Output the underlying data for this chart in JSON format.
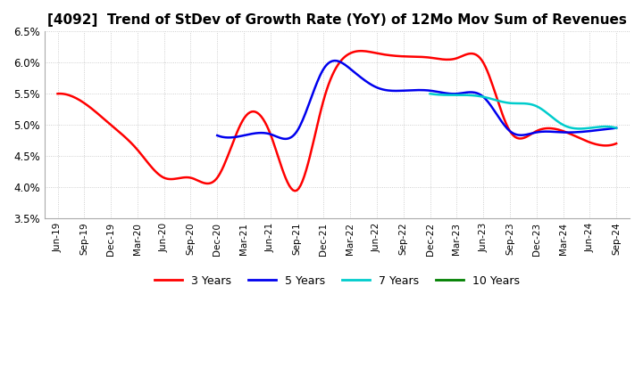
{
  "title": "[4092]  Trend of StDev of Growth Rate (YoY) of 12Mo Mov Sum of Revenues",
  "ylim": [
    0.035,
    0.065
  ],
  "yticks": [
    0.035,
    0.04,
    0.045,
    0.05,
    0.055,
    0.06,
    0.065
  ],
  "ytick_labels": [
    "3.5%",
    "4.0%",
    "4.5%",
    "5.0%",
    "5.5%",
    "6.0%",
    "6.5%"
  ],
  "xtick_labels": [
    "Jun-19",
    "Sep-19",
    "Dec-19",
    "Mar-20",
    "Jun-20",
    "Sep-20",
    "Dec-20",
    "Mar-21",
    "Jun-21",
    "Sep-21",
    "Dec-21",
    "Mar-22",
    "Jun-22",
    "Sep-22",
    "Dec-22",
    "Mar-23",
    "Jun-23",
    "Sep-23",
    "Dec-23",
    "Mar-24",
    "Jun-24",
    "Sep-24"
  ],
  "series": {
    "3 Years": {
      "color": "#FF0000",
      "data_x": [
        0,
        1,
        2,
        3,
        4,
        5,
        6,
        7,
        8,
        9,
        10,
        11,
        12,
        13,
        14,
        15,
        16,
        17,
        18,
        19,
        20,
        21
      ],
      "data_y": [
        0.055,
        0.0535,
        0.05,
        0.046,
        0.0415,
        0.0415,
        0.0415,
        0.051,
        0.0485,
        0.0395,
        0.054,
        0.0615,
        0.0615,
        0.061,
        0.0608,
        0.0607,
        0.06,
        0.049,
        0.049,
        0.049,
        0.0472,
        0.047
      ]
    },
    "5 Years": {
      "color": "#0000EE",
      "data_x": [
        6,
        7,
        8,
        9,
        10,
        11,
        12,
        13,
        14,
        15,
        16,
        17,
        18,
        19,
        20,
        21
      ],
      "data_y": [
        0.0483,
        0.0483,
        0.0485,
        0.049,
        0.059,
        0.059,
        0.056,
        0.0555,
        0.0555,
        0.055,
        0.0545,
        0.049,
        0.0488,
        0.0488,
        0.049,
        0.0495
      ]
    },
    "7 Years": {
      "color": "#00CCCC",
      "data_x": [
        14,
        15,
        16,
        17,
        18,
        19,
        20,
        21
      ],
      "data_y": [
        0.055,
        0.0548,
        0.0545,
        0.0535,
        0.053,
        0.05,
        0.0495,
        0.0495
      ]
    },
    "10 Years": {
      "color": "#008000",
      "data_x": [],
      "data_y": []
    }
  },
  "legend_entries": [
    "3 Years",
    "5 Years",
    "7 Years",
    "10 Years"
  ],
  "legend_colors": [
    "#FF0000",
    "#0000EE",
    "#00CCCC",
    "#008000"
  ],
  "background_color": "#FFFFFF",
  "grid_color": "#999999",
  "title_fontsize": 11,
  "linewidth": 1.8
}
